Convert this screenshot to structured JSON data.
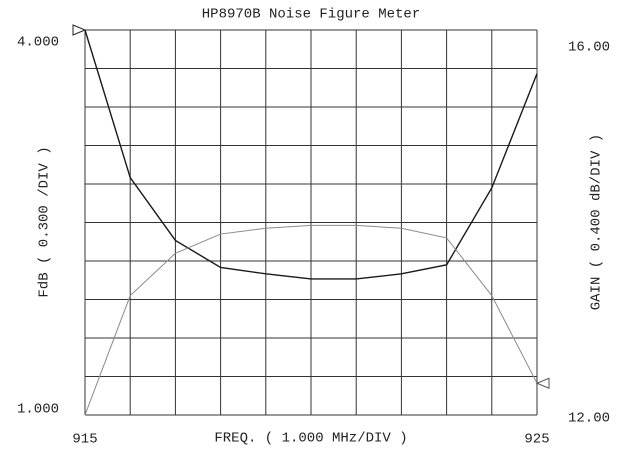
{
  "chart_data": {
    "type": "line",
    "title": "HP8970B Noise Figure Meter",
    "x_label": "FREQ. ( 1.000 MHz/DIV )",
    "y_label": "FdB  ( 0.300 /DIV )",
    "y2_label": "GAIN  ( 0.400 dB/DIV )",
    "x": [
      915,
      916,
      917,
      918,
      919,
      920,
      921,
      922,
      923,
      924,
      925
    ],
    "series": [
      {
        "color": "#1a1a1a",
        "values": [
          4.0,
          2.85,
          2.36,
          2.15,
          2.1,
          2.06,
          2.06,
          2.1,
          2.17,
          2.77,
          3.66
        ]
      },
      {
        "color": "#8a8a8a",
        "axis": "y2",
        "values": [
          12.0,
          13.24,
          13.68,
          13.88,
          13.94,
          13.97,
          13.97,
          13.94,
          13.84,
          13.24,
          12.33
        ]
      }
    ],
    "xlim": [
      915,
      925
    ],
    "xticks": [
      915,
      925
    ],
    "ylim": [
      1,
      4
    ],
    "yticks": [
      {
        "value": 4,
        "label": "4.000"
      },
      {
        "value": 1,
        "label": "1.000"
      }
    ],
    "y2lim": [
      12,
      16
    ],
    "y2ticks": [
      {
        "value": 16,
        "label": "16.00"
      },
      {
        "value": 12,
        "label": "12.00"
      }
    ],
    "grid": true
  }
}
